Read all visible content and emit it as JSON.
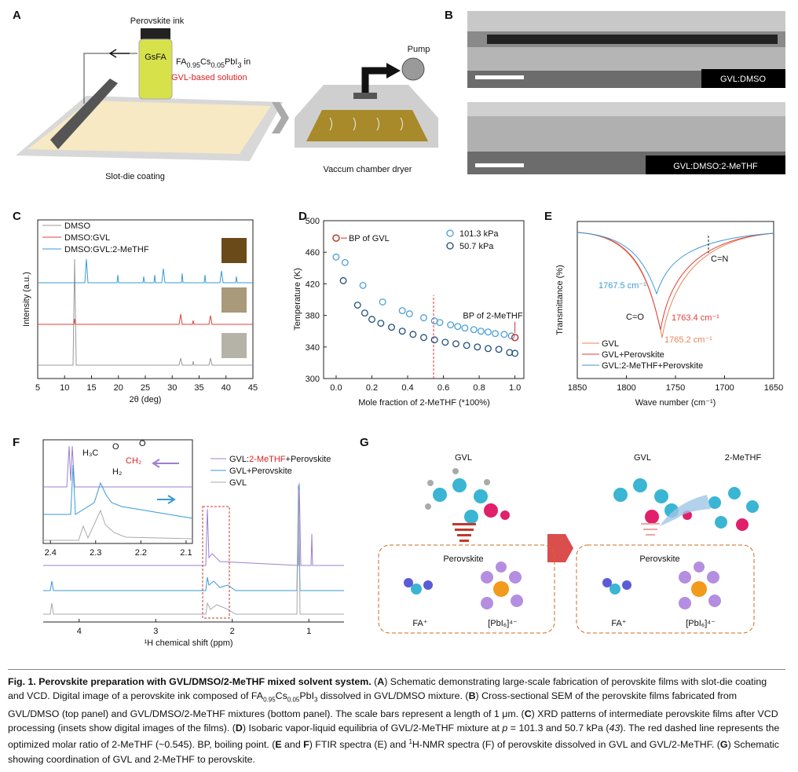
{
  "panel_labels": [
    "A",
    "B",
    "C",
    "D",
    "E",
    "F",
    "G"
  ],
  "panel_a": {
    "ink_label": "Perovskite ink",
    "vial_text": "GsFA",
    "formula": [
      "FA",
      "0.95",
      "Cs",
      "0.05",
      "PbI",
      "3",
      " in"
    ],
    "solution": "GVL-based solution",
    "pump": "Pump",
    "left_caption": "Slot-die coating",
    "right_caption": "Vaccum chamber dryer"
  },
  "panel_b": {
    "top_label": "GVL:DMSO",
    "bottom_label": "GVL:DMSO:2-MeTHF"
  },
  "panel_c": {
    "legend": [
      "DMSO",
      "DMSO:GVL",
      "DMSO:GVL:2-MeTHF"
    ],
    "y_label": "Intensity (a.u.)",
    "x_label": "2θ (deg)",
    "xlim": [
      5,
      45
    ],
    "xticks": [
      5,
      10,
      15,
      20,
      25,
      30,
      35,
      40,
      45
    ]
  },
  "chart_data": {
    "type": "scatter",
    "x_label": "Mole fraction of 2-MeTHF (*100%)",
    "y_label": "Temperature (K)",
    "xlim": [
      -0.07,
      1.05
    ],
    "ylim": [
      300,
      500
    ],
    "xticks": [
      {
        "value": 0,
        "label": "0.0"
      },
      {
        "value": 0.2,
        "label": "0.2"
      },
      {
        "value": 0.4,
        "label": "0.4"
      },
      {
        "value": 0.6,
        "label": "0.6"
      },
      {
        "value": 0.8,
        "label": "0.8"
      },
      {
        "value": 1,
        "label": "1.0"
      }
    ],
    "yticks": [
      300,
      340,
      380,
      420,
      460,
      500
    ],
    "series": [
      {
        "name": "101.3 kPa",
        "color": "#4a9fd8",
        "x": [
          0,
          0.05,
          0.15,
          0.26,
          0.37,
          0.41,
          0.49,
          0.55,
          0.58,
          0.64,
          0.68,
          0.72,
          0.77,
          0.81,
          0.85,
          0.89,
          0.94,
          0.98
        ],
        "values": [
          454,
          447,
          418,
          397,
          386,
          382,
          377,
          373,
          371,
          368,
          366,
          364,
          362,
          360,
          359,
          357,
          356,
          354
        ]
      },
      {
        "name": "50.7 kPa",
        "color": "#1f4e79",
        "x": [
          0.04,
          0.12,
          0.16,
          0.2,
          0.25,
          0.31,
          0.37,
          0.43,
          0.49,
          0.55,
          0.61,
          0.67,
          0.73,
          0.79,
          0.85,
          0.91,
          0.97,
          1.0
        ],
        "values": [
          424,
          393,
          383,
          375,
          370,
          365,
          360,
          356,
          352,
          349,
          346,
          344,
          342,
          340,
          338,
          337,
          333,
          332
        ]
      }
    ],
    "annotations": [
      {
        "text": "BP of GVL",
        "x": 0,
        "y": 478
      },
      {
        "text": "BP of 2-MeTHF",
        "x": 1,
        "y": 352
      }
    ],
    "marker_line_x": 0.545
  },
  "panel_e": {
    "legend": [
      "GVL",
      "GVL+Perovskite",
      "GVL:2-MeTHF+Perovskite"
    ],
    "y_label": "Transmittance (%)",
    "x_label": "Wave number (cm⁻¹)",
    "xlim": [
      1850,
      1650
    ],
    "xticks": [
      1850,
      1800,
      1750,
      1700,
      1650
    ],
    "annotations": [
      "1767.5 cm⁻¹",
      "1763.4 cm⁻¹",
      "1765.2 cm⁻¹",
      "C=O",
      "C=N"
    ]
  },
  "panel_f": {
    "legend": [
      [
        "GVL:",
        "2-MeTHF",
        "+Perovskite"
      ],
      [
        "GVL+Perovskite"
      ],
      [
        "GVL"
      ]
    ],
    "x_label": "¹H chemical shift (ppm)",
    "xlim": [
      4.47,
      0.54
    ],
    "xticks": [
      4,
      3,
      2,
      1
    ],
    "inset_xlim": [
      2.416,
      2.086
    ],
    "inset_xticks": [
      2.4,
      2.3,
      2.2,
      2.1
    ],
    "structure_labels": [
      "H₃C",
      "O",
      "O",
      "CH₂",
      "H₂"
    ]
  },
  "panel_g": {
    "left_title": "GVL",
    "right_titles": [
      "GVL",
      "2-MeTHF"
    ],
    "box_titles": [
      "Perovskite",
      "Perovskite"
    ],
    "ions": [
      "FA⁺",
      "[PbI₆]⁴⁻",
      "FA⁺",
      "[PbI₆]⁴⁻"
    ]
  },
  "caption": [
    "Fig. 1. Perovskite preparation with GVL/DMSO/2-MeTHF mixed solvent system.",
    " (",
    "A",
    ") Schematic demonstrating large-scale fabrication of perovskite films with slot-die coating and VCD. Digital image of a perovskite ink composed of FA",
    "0.95",
    "Cs",
    "0.05",
    "PbI",
    "3",
    " dissolved in GVL/DMSO mixture. (",
    "B",
    ") Cross-sectional SEM of the perovskite films fabricated from GVL/DMSO (top panel) and GVL/DMSO/2-MeTHF mixtures (bottom panel). The scale bars represent a length of 1 μm. (",
    "C",
    ") XRD patterns of intermediate perovskite films after VCD processing (insets show digital images of the films). (",
    "D",
    ") Isobaric vapor-liquid equilibria of GVL/2-MeTHF mixture at ",
    "p",
    " = 101.3 and 50.7 kPa (",
    "43",
    "). The red dashed line represents the optimized molar ratio of 2-MeTHF (~0.545). BP, boiling point. (",
    "E",
    " and ",
    "F",
    ") FTIR spectra (E) and ",
    "1",
    "H-NMR spectra (F) of perovskite dissolved in GVL and GVL/2-MeTHF. (",
    "G",
    ") Schematic showing coordination of GVL and 2-MeTHF to perovskite."
  ]
}
